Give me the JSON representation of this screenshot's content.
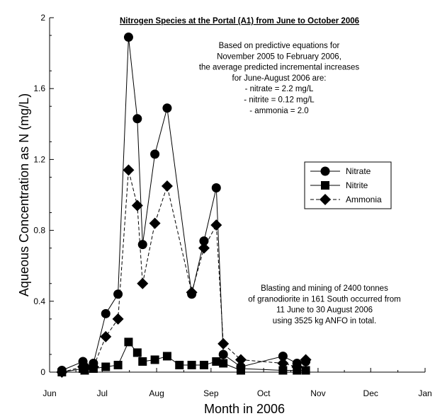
{
  "chart_data": {
    "type": "line",
    "title": "Nitrogen Species at the Portal (A1) from June to October 2006",
    "xlabel": "Month in 2006",
    "ylabel": "Aqueous Concentration as N (mg/L)",
    "ylim": [
      0,
      2
    ],
    "xlim": [
      "2006-06-01",
      "2007-01-01"
    ],
    "y_ticks": [
      "0",
      "0.4",
      "0.8",
      "1.2",
      "1.6",
      "2"
    ],
    "x_ticks": [
      {
        "label": "Jun",
        "date": "2006-06-01"
      },
      {
        "label": "Jul",
        "date": "2006-07-01"
      },
      {
        "label": "Aug",
        "date": "2006-08-01"
      },
      {
        "label": "Sep",
        "date": "2006-09-01"
      },
      {
        "label": "Oct",
        "date": "2006-10-01"
      },
      {
        "label": "Nov",
        "date": "2006-11-01"
      },
      {
        "label": "Dec",
        "date": "2006-12-01"
      },
      {
        "label": "Jan",
        "date": "2007-01-01"
      }
    ],
    "grid": false,
    "legend_position": "right",
    "series": [
      {
        "name": "Nitrate",
        "marker": "circle",
        "line": "solid",
        "points": [
          [
            "2006-06-08",
            0.01
          ],
          [
            "2006-06-20",
            0.06
          ],
          [
            "2006-06-21",
            0.03
          ],
          [
            "2006-06-26",
            0.05
          ],
          [
            "2006-07-03",
            0.33
          ],
          [
            "2006-07-10",
            0.44
          ],
          [
            "2006-07-16",
            1.89
          ],
          [
            "2006-07-21",
            1.43
          ],
          [
            "2006-07-24",
            0.72
          ],
          [
            "2006-07-31",
            1.23
          ],
          [
            "2006-08-07",
            1.49
          ],
          [
            "2006-08-21",
            0.44
          ],
          [
            "2006-08-28",
            0.74
          ],
          [
            "2006-09-04",
            1.04
          ],
          [
            "2006-09-08",
            0.1
          ],
          [
            "2006-09-18",
            0.03
          ],
          [
            "2006-10-12",
            0.09
          ],
          [
            "2006-10-20",
            0.05
          ],
          [
            "2006-10-25",
            0.06
          ]
        ]
      },
      {
        "name": "Nitrite",
        "marker": "square",
        "line": "solid",
        "points": [
          [
            "2006-06-08",
            0.0
          ],
          [
            "2006-06-20",
            0.02
          ],
          [
            "2006-06-21",
            0.01
          ],
          [
            "2006-06-26",
            0.02
          ],
          [
            "2006-07-03",
            0.03
          ],
          [
            "2006-07-10",
            0.04
          ],
          [
            "2006-07-16",
            0.17
          ],
          [
            "2006-07-21",
            0.11
          ],
          [
            "2006-07-24",
            0.06
          ],
          [
            "2006-07-31",
            0.07
          ],
          [
            "2006-08-07",
            0.09
          ],
          [
            "2006-08-14",
            0.04
          ],
          [
            "2006-08-21",
            0.04
          ],
          [
            "2006-08-28",
            0.04
          ],
          [
            "2006-09-04",
            0.06
          ],
          [
            "2006-09-08",
            0.05
          ],
          [
            "2006-09-18",
            0.01
          ],
          [
            "2006-09-18",
            0.02
          ],
          [
            "2006-10-12",
            0.01
          ],
          [
            "2006-10-20",
            0.01
          ],
          [
            "2006-10-25",
            0.01
          ]
        ]
      },
      {
        "name": "Ammonia",
        "marker": "diamond",
        "line": "dashed",
        "points": [
          [
            "2006-06-08",
            0.0
          ],
          [
            "2006-06-20",
            0.03
          ],
          [
            "2006-06-21",
            0.02
          ],
          [
            "2006-06-26",
            0.03
          ],
          [
            "2006-07-03",
            0.2
          ],
          [
            "2006-07-10",
            0.3
          ],
          [
            "2006-07-16",
            1.14
          ],
          [
            "2006-07-21",
            0.94
          ],
          [
            "2006-07-24",
            0.5
          ],
          [
            "2006-07-31",
            0.84
          ],
          [
            "2006-08-07",
            1.05
          ],
          [
            "2006-08-21",
            0.45
          ],
          [
            "2006-08-28",
            0.7
          ],
          [
            "2006-09-04",
            0.83
          ],
          [
            "2006-09-08",
            0.16
          ],
          [
            "2006-09-18",
            0.07
          ],
          [
            "2006-10-12",
            0.05
          ],
          [
            "2006-10-20",
            0.03
          ],
          [
            "2006-10-25",
            0.07
          ]
        ]
      }
    ],
    "annotations": [
      [
        "Based on predictive equations for",
        "November 2005 to February 2006,",
        "the average predicted incremental increases",
        "for June-August 2006 are:",
        "- nitrate = 2.2 mg/L",
        "- nitrite = 0.12 mg/L",
        "- ammonia = 2.0"
      ],
      [
        "Blasting and mining of 2400 tonnes",
        "of granodiorite in 161 South occurred from",
        "11 June to 30 August 2006",
        "using 3525 kg ANFO in total."
      ]
    ]
  }
}
